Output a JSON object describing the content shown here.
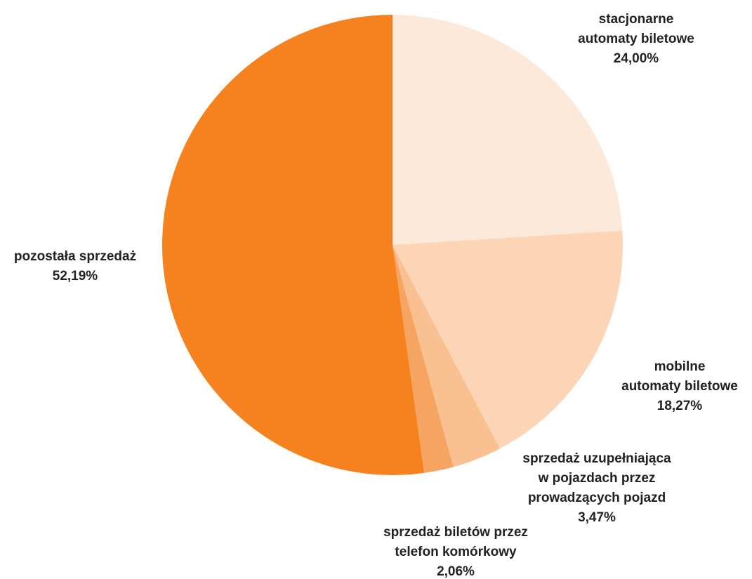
{
  "chart_data": {
    "type": "pie",
    "title": "",
    "slices": [
      {
        "name": "stacjonarne automaty biletowe",
        "label_lines": [
          "stacjonarne",
          "automaty biletowe"
        ],
        "value": 24.0,
        "value_label": "24,00%",
        "color": "#FDE9DA"
      },
      {
        "name": "mobilne automaty biletowe",
        "label_lines": [
          "mobilne",
          "automaty biletowe"
        ],
        "value": 18.27,
        "value_label": "18,27%",
        "color": "#FBD5B5"
      },
      {
        "name": "sprzedaż uzupełniająca w pojazdach przez prowadzących pojazd",
        "label_lines": [
          "sprzedaż uzupełniająca",
          "w pojazdach przez",
          "prowadzących pojazd"
        ],
        "value": 3.47,
        "value_label": "3,47%",
        "color": "#F9C092"
      },
      {
        "name": "sprzedaż biletów przez telefon komórkowy",
        "label_lines": [
          "sprzedaż biletów przez",
          "telefon komórkowy"
        ],
        "value": 2.06,
        "value_label": "2,06%",
        "color": "#F6A462"
      },
      {
        "name": "pozostała sprzedaż",
        "label_lines": [
          "pozostała sprzedaż"
        ],
        "value": 52.19,
        "value_label": "52,19%",
        "color": "#F5821F"
      }
    ],
    "start_angle": "12 o'clock",
    "direction": "clockwise",
    "legend": "none"
  }
}
